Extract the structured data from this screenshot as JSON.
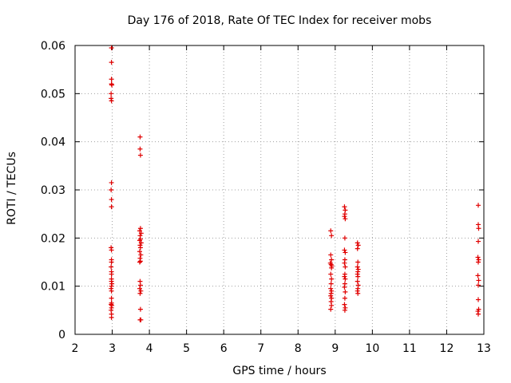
{
  "chart_data": {
    "type": "scatter",
    "title": "Day 176 of 2018, Rate Of TEC Index for receiver mobs",
    "xlabel": "GPS time / hours",
    "ylabel": "ROTI / TECUs",
    "xlim": [
      2,
      13
    ],
    "ylim": [
      0,
      0.06
    ],
    "xticks": [
      "2",
      "3",
      "4",
      "5",
      "6",
      "7",
      "8",
      "9",
      "10",
      "11",
      "12",
      "13"
    ],
    "yticks": [
      "0",
      "0.01",
      "0.02",
      "0.03",
      "0.04",
      "0.05",
      "0.06"
    ],
    "grid": true,
    "marker": "+",
    "color": "#e00000",
    "series": [
      {
        "name": "ROTI",
        "points": [
          [
            2.98,
            0.0595
          ],
          [
            2.98,
            0.0565
          ],
          [
            2.98,
            0.053
          ],
          [
            2.98,
            0.052
          ],
          [
            2.99,
            0.0518
          ],
          [
            2.97,
            0.05
          ],
          [
            2.97,
            0.049
          ],
          [
            2.98,
            0.0485
          ],
          [
            2.98,
            0.0315
          ],
          [
            2.97,
            0.03
          ],
          [
            2.98,
            0.028
          ],
          [
            2.98,
            0.0265
          ],
          [
            2.97,
            0.018
          ],
          [
            2.98,
            0.0175
          ],
          [
            2.98,
            0.0155
          ],
          [
            2.98,
            0.015
          ],
          [
            2.97,
            0.014
          ],
          [
            2.98,
            0.013
          ],
          [
            2.98,
            0.0125
          ],
          [
            2.98,
            0.0115
          ],
          [
            2.98,
            0.011
          ],
          [
            2.99,
            0.0105
          ],
          [
            2.98,
            0.01
          ],
          [
            2.97,
            0.0095
          ],
          [
            2.98,
            0.009
          ],
          [
            2.98,
            0.0075
          ],
          [
            2.98,
            0.0065
          ],
          [
            2.97,
            0.0062
          ],
          [
            2.99,
            0.006
          ],
          [
            2.98,
            0.0055
          ],
          [
            2.97,
            0.005
          ],
          [
            2.98,
            0.0042
          ],
          [
            2.98,
            0.0035
          ],
          [
            3.75,
            0.041
          ],
          [
            3.75,
            0.0385
          ],
          [
            3.76,
            0.0372
          ],
          [
            3.76,
            0.022
          ],
          [
            3.74,
            0.0215
          ],
          [
            3.78,
            0.021
          ],
          [
            3.75,
            0.0205
          ],
          [
            3.76,
            0.0198
          ],
          [
            3.74,
            0.0195
          ],
          [
            3.78,
            0.019
          ],
          [
            3.75,
            0.0185
          ],
          [
            3.76,
            0.018
          ],
          [
            3.74,
            0.0172
          ],
          [
            3.77,
            0.0165
          ],
          [
            3.75,
            0.0158
          ],
          [
            3.76,
            0.0152
          ],
          [
            3.74,
            0.015
          ],
          [
            3.75,
            0.011
          ],
          [
            3.76,
            0.0102
          ],
          [
            3.74,
            0.0095
          ],
          [
            3.77,
            0.009
          ],
          [
            3.75,
            0.0085
          ],
          [
            3.76,
            0.0052
          ],
          [
            3.75,
            0.003
          ],
          [
            3.77,
            0.003
          ],
          [
            8.88,
            0.0215
          ],
          [
            8.9,
            0.0205
          ],
          [
            8.88,
            0.0165
          ],
          [
            8.9,
            0.0155
          ],
          [
            8.87,
            0.0148
          ],
          [
            8.89,
            0.0145
          ],
          [
            8.91,
            0.0142
          ],
          [
            8.9,
            0.0138
          ],
          [
            8.88,
            0.0125
          ],
          [
            8.9,
            0.0115
          ],
          [
            8.89,
            0.0105
          ],
          [
            8.88,
            0.0095
          ],
          [
            8.9,
            0.009
          ],
          [
            8.89,
            0.0085
          ],
          [
            8.88,
            0.008
          ],
          [
            8.9,
            0.0075
          ],
          [
            8.89,
            0.0068
          ],
          [
            8.9,
            0.006
          ],
          [
            8.88,
            0.0052
          ],
          [
            9.25,
            0.0265
          ],
          [
            9.27,
            0.0258
          ],
          [
            9.26,
            0.025
          ],
          [
            9.25,
            0.0245
          ],
          [
            9.27,
            0.024
          ],
          [
            9.26,
            0.02
          ],
          [
            9.25,
            0.0175
          ],
          [
            9.27,
            0.017
          ],
          [
            9.26,
            0.0155
          ],
          [
            9.25,
            0.0148
          ],
          [
            9.27,
            0.014
          ],
          [
            9.26,
            0.0125
          ],
          [
            9.25,
            0.012
          ],
          [
            9.27,
            0.0115
          ],
          [
            9.26,
            0.0105
          ],
          [
            9.25,
            0.0098
          ],
          [
            9.27,
            0.0088
          ],
          [
            9.26,
            0.0075
          ],
          [
            9.25,
            0.0062
          ],
          [
            9.27,
            0.0055
          ],
          [
            9.26,
            0.005
          ],
          [
            9.6,
            0.019
          ],
          [
            9.62,
            0.0185
          ],
          [
            9.6,
            0.0178
          ],
          [
            9.61,
            0.015
          ],
          [
            9.6,
            0.014
          ],
          [
            9.62,
            0.0135
          ],
          [
            9.61,
            0.013
          ],
          [
            9.6,
            0.0125
          ],
          [
            9.61,
            0.012
          ],
          [
            9.6,
            0.011
          ],
          [
            9.62,
            0.0102
          ],
          [
            9.61,
            0.0095
          ],
          [
            9.6,
            0.009
          ],
          [
            9.61,
            0.0085
          ],
          [
            12.85,
            0.0268
          ],
          [
            12.85,
            0.0228
          ],
          [
            12.86,
            0.022
          ],
          [
            12.85,
            0.0193
          ],
          [
            12.84,
            0.016
          ],
          [
            12.86,
            0.0155
          ],
          [
            12.85,
            0.015
          ],
          [
            12.84,
            0.0122
          ],
          [
            12.86,
            0.0112
          ],
          [
            12.85,
            0.0102
          ],
          [
            12.85,
            0.0072
          ],
          [
            12.86,
            0.0052
          ],
          [
            12.84,
            0.0048
          ],
          [
            12.85,
            0.0042
          ]
        ]
      }
    ]
  }
}
